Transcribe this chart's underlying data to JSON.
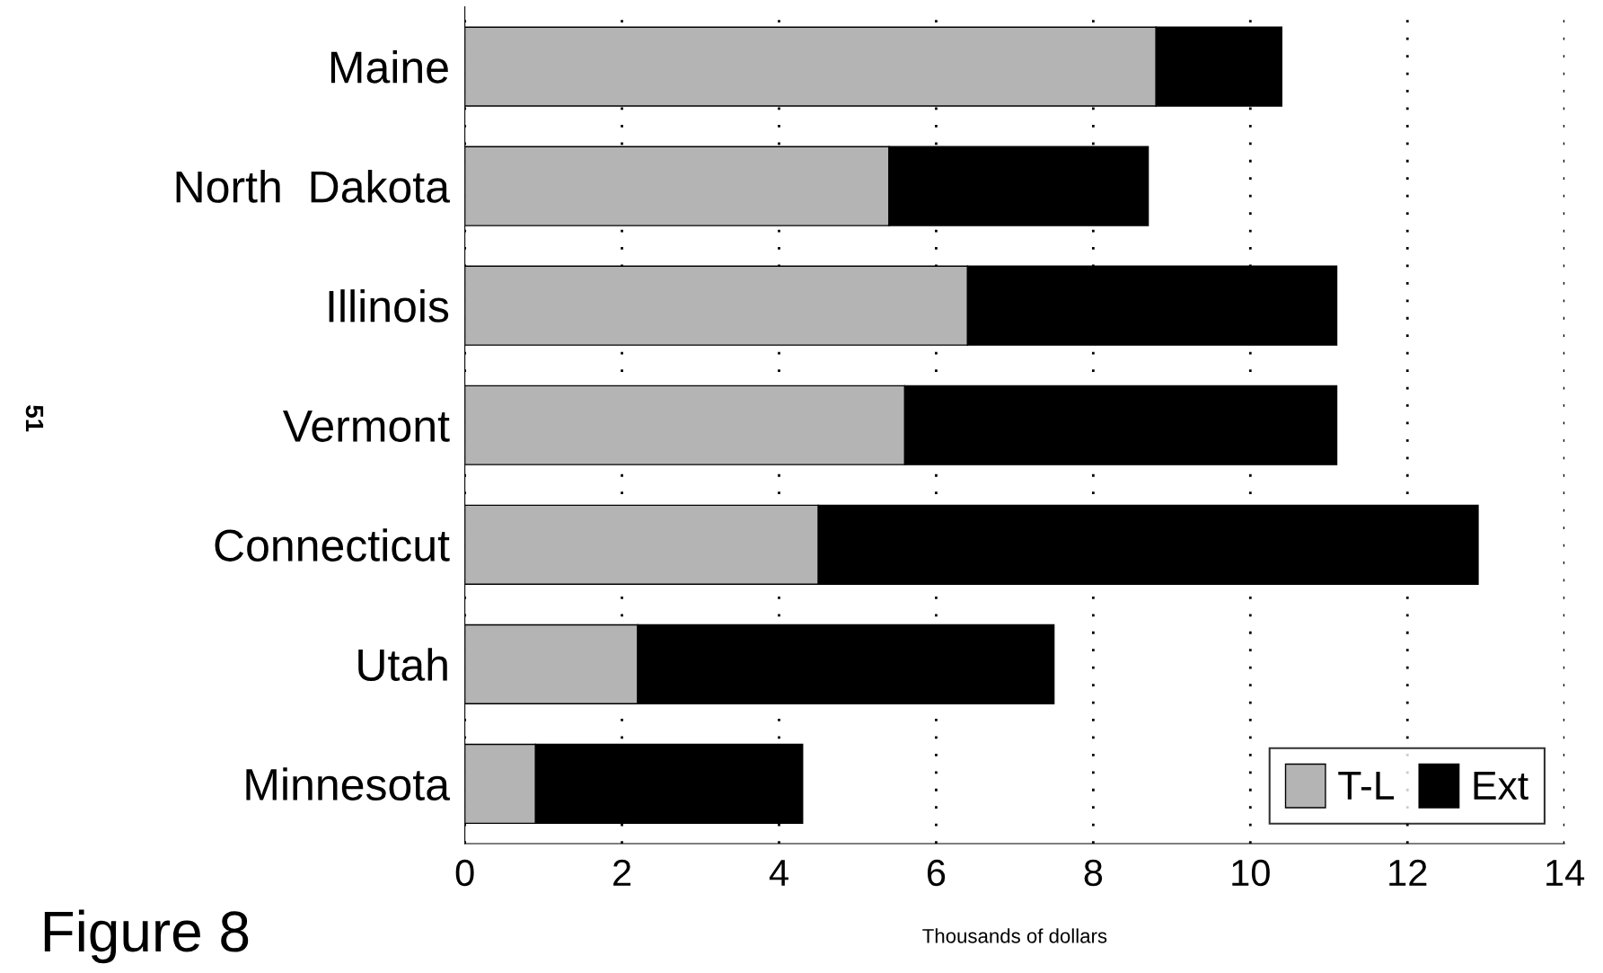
{
  "chart_data": {
    "type": "bar",
    "orientation": "horizontal",
    "stacked": true,
    "categories": [
      "Maine",
      "North  Dakota",
      "Illinois",
      "Vermont",
      "Connecticut",
      "Utah",
      "Minnesota"
    ],
    "series": [
      {
        "name": "T-L",
        "color": "#b4b4b4",
        "values": [
          8.8,
          5.4,
          6.4,
          5.6,
          4.5,
          2.2,
          0.9
        ]
      },
      {
        "name": "Ext",
        "color": "#000000",
        "values": [
          1.6,
          3.3,
          4.7,
          5.5,
          8.4,
          5.3,
          3.4
        ]
      }
    ],
    "xlabel": "Thousands of dollars",
    "xlim": [
      0,
      14
    ],
    "xticks": [
      0,
      2,
      4,
      6,
      8,
      10,
      12,
      14
    ],
    "grid": "x",
    "legend": "bottom right",
    "annotations": [
      "Figure 8",
      "51"
    ]
  }
}
